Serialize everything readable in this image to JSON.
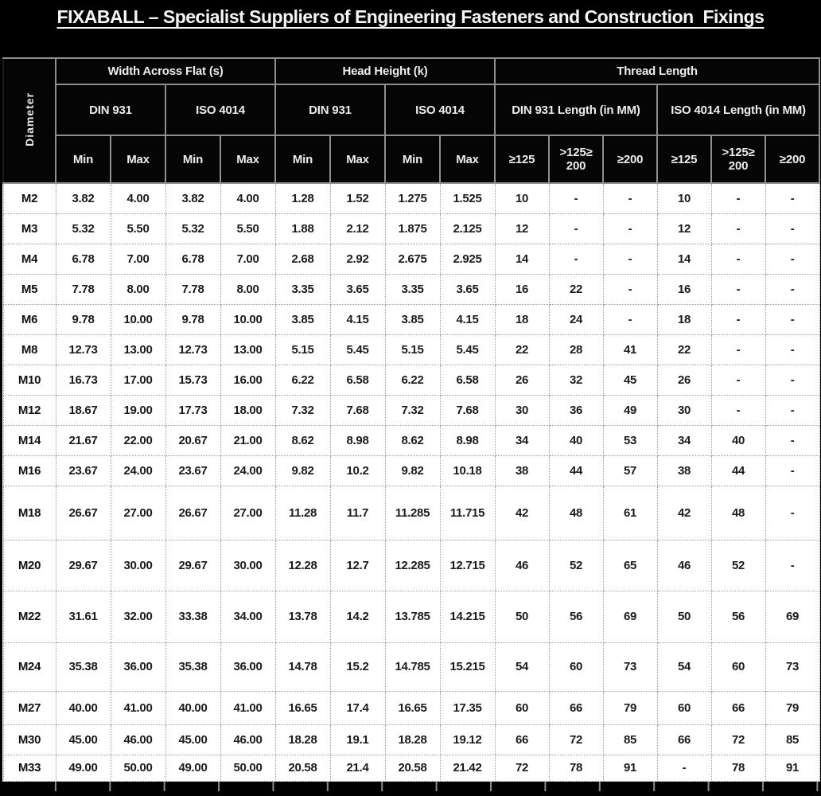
{
  "title": "FIXABALL – Specialist Suppliers of Engineering Fasteners and Construction  Fixings",
  "table": {
    "diameter_header": "Diameter",
    "groups": [
      {
        "label": "Width Across Flat (s)",
        "span": 4
      },
      {
        "label": "Head Height (k)",
        "span": 4
      },
      {
        "label": "Thread Length",
        "span": 6
      }
    ],
    "subgroups": [
      {
        "label": "DIN 931",
        "span": 2
      },
      {
        "label": "ISO 4014",
        "span": 2
      },
      {
        "label": "DIN 931",
        "span": 2
      },
      {
        "label": "ISO 4014",
        "span": 2
      },
      {
        "label": "DIN 931 Length (in MM)",
        "span": 3
      },
      {
        "label": "ISO 4014 Length (in MM)",
        "span": 3
      }
    ],
    "columns": [
      "Min",
      "Max",
      "Min",
      "Max",
      "Min",
      "Max",
      "Min",
      "Max",
      "≥125",
      ">125≥ 200",
      "≥200",
      "≥125",
      ">125≥ 200",
      "≥200"
    ],
    "rows": [
      {
        "diameter": "M2",
        "values": [
          "3.82",
          "4.00",
          "3.82",
          "4.00",
          "1.28",
          "1.52",
          "1.275",
          "1.525",
          "10",
          "-",
          "-",
          "10",
          "-",
          "-"
        ]
      },
      {
        "diameter": "M3",
        "values": [
          "5.32",
          "5.50",
          "5.32",
          "5.50",
          "1.88",
          "2.12",
          "1.875",
          "2.125",
          "12",
          "-",
          "-",
          "12",
          "-",
          "-"
        ]
      },
      {
        "diameter": "M4",
        "values": [
          "6.78",
          "7.00",
          "6.78",
          "7.00",
          "2.68",
          "2.92",
          "2.675",
          "2.925",
          "14",
          "-",
          "-",
          "14",
          "-",
          "-"
        ]
      },
      {
        "diameter": "M5",
        "values": [
          "7.78",
          "8.00",
          "7.78",
          "8.00",
          "3.35",
          "3.65",
          "3.35",
          "3.65",
          "16",
          "22",
          "-",
          "16",
          "-",
          "-"
        ]
      },
      {
        "diameter": "M6",
        "values": [
          "9.78",
          "10.00",
          "9.78",
          "10.00",
          "3.85",
          "4.15",
          "3.85",
          "4.15",
          "18",
          "24",
          "-",
          "18",
          "-",
          "-"
        ]
      },
      {
        "diameter": "M8",
        "values": [
          "12.73",
          "13.00",
          "12.73",
          "13.00",
          "5.15",
          "5.45",
          "5.15",
          "5.45",
          "22",
          "28",
          "41",
          "22",
          "-",
          "-"
        ]
      },
      {
        "diameter": "M10",
        "values": [
          "16.73",
          "17.00",
          "15.73",
          "16.00",
          "6.22",
          "6.58",
          "6.22",
          "6.58",
          "26",
          "32",
          "45",
          "26",
          "-",
          "-"
        ]
      },
      {
        "diameter": "M12",
        "values": [
          "18.67",
          "19.00",
          "17.73",
          "18.00",
          "7.32",
          "7.68",
          "7.32",
          "7.68",
          "30",
          "36",
          "49",
          "30",
          "-",
          "-"
        ]
      },
      {
        "diameter": "M14",
        "values": [
          "21.67",
          "22.00",
          "20.67",
          "21.00",
          "8.62",
          "8.98",
          "8.62",
          "8.98",
          "34",
          "40",
          "53",
          "34",
          "40",
          "-"
        ]
      },
      {
        "diameter": "M16",
        "values": [
          "23.67",
          "24.00",
          "23.67",
          "24.00",
          "9.82",
          "10.2",
          "9.82",
          "10.18",
          "38",
          "44",
          "57",
          "38",
          "44",
          "-"
        ]
      },
      {
        "diameter": "M18",
        "values": [
          "26.67",
          "27.00",
          "26.67",
          "27.00",
          "11.28",
          "11.7",
          "11.285",
          "11.715",
          "42",
          "48",
          "61",
          "42",
          "48",
          "-"
        ]
      },
      {
        "diameter": "M20",
        "values": [
          "29.67",
          "30.00",
          "29.67",
          "30.00",
          "12.28",
          "12.7",
          "12.285",
          "12.715",
          "46",
          "52",
          "65",
          "46",
          "52",
          "-"
        ]
      },
      {
        "diameter": "M22",
        "values": [
          "31.61",
          "32.00",
          "33.38",
          "34.00",
          "13.78",
          "14.2",
          "13.785",
          "14.215",
          "50",
          "56",
          "69",
          "50",
          "56",
          "69"
        ]
      },
      {
        "diameter": "M24",
        "values": [
          "35.38",
          "36.00",
          "35.38",
          "36.00",
          "14.78",
          "15.2",
          "14.785",
          "15.215",
          "54",
          "60",
          "73",
          "54",
          "60",
          "73"
        ]
      },
      {
        "diameter": "M27",
        "values": [
          "40.00",
          "41.00",
          "40.00",
          "41.00",
          "16.65",
          "17.4",
          "16.65",
          "17.35",
          "60",
          "66",
          "79",
          "60",
          "66",
          "79"
        ]
      },
      {
        "diameter": "M30",
        "values": [
          "45.00",
          "46.00",
          "45.00",
          "46.00",
          "18.28",
          "19.1",
          "18.28",
          "19.12",
          "66",
          "72",
          "85",
          "66",
          "72",
          "85"
        ]
      },
      {
        "diameter": "M33",
        "values": [
          "49.00",
          "50.00",
          "49.00",
          "50.00",
          "20.58",
          "21.4",
          "20.58",
          "21.42",
          "72",
          "78",
          "91",
          "-",
          "78",
          "91"
        ]
      }
    ]
  },
  "colors": {
    "frame": "#000000",
    "header_bg": "#050505",
    "header_text": "#ededed",
    "header_grid": "#8f8f8f",
    "data_grid": "#9d9d9d",
    "data_bg": "#ffffff",
    "data_text": "#1b1b1b"
  }
}
